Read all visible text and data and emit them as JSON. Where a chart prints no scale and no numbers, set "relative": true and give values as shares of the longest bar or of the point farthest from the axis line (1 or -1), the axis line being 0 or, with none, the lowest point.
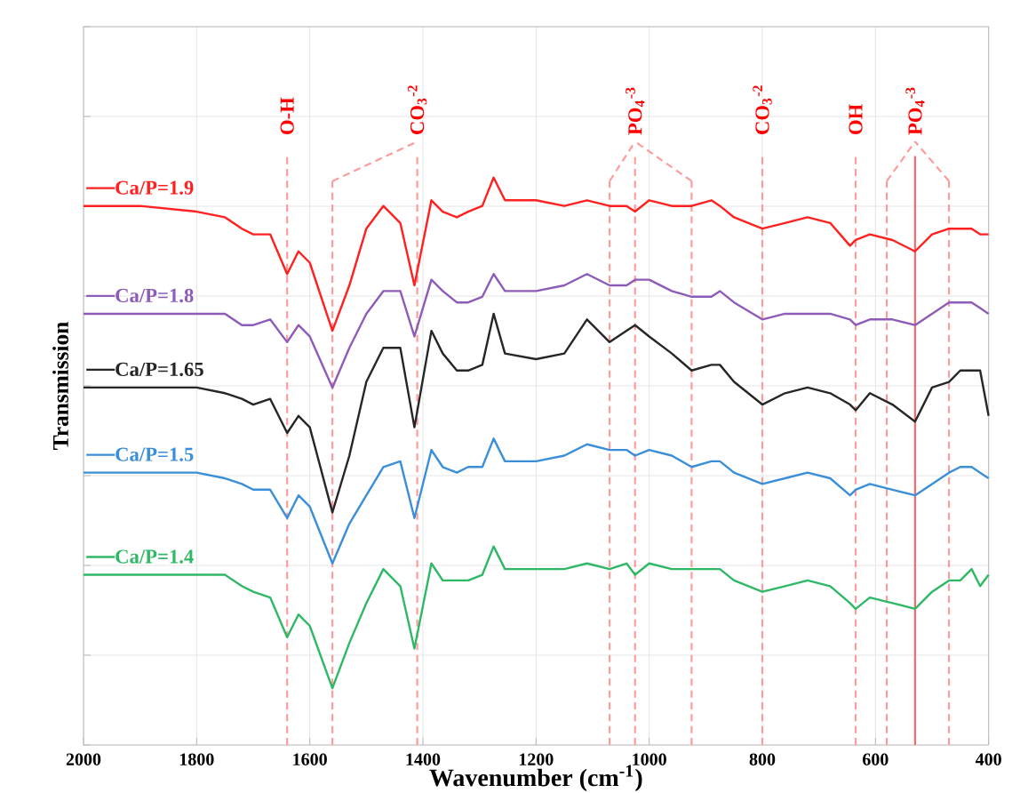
{
  "chart_data": {
    "type": "line",
    "relative": true,
    "xlabel": "Wavenumber (cm$^{-1}$)",
    "ylabel": "Transmission",
    "xlim": [
      2000,
      400
    ],
    "xticks": [
      2000,
      1800,
      1600,
      1400,
      1200,
      1000,
      800,
      600,
      400
    ],
    "grid": true,
    "tick_labels": "x",
    "legend": "left",
    "line_style": "solid",
    "x": [
      2000,
      1900,
      1800,
      1750,
      1720,
      1700,
      1670,
      1640,
      1620,
      1600,
      1560,
      1530,
      1500,
      1470,
      1440,
      1415,
      1385,
      1365,
      1340,
      1320,
      1295,
      1275,
      1255,
      1200,
      1150,
      1110,
      1070,
      1040,
      1025,
      1000,
      960,
      925,
      890,
      875,
      850,
      800,
      760,
      720,
      680,
      645,
      635,
      610,
      570,
      530,
      500,
      470,
      450,
      430,
      415,
      400
    ],
    "series": [
      {
        "name": "Ca/P=1.9",
        "color": "#ff2020",
        "values": [
          0.95,
          0.95,
          0.94,
          0.93,
          0.91,
          0.9,
          0.9,
          0.83,
          0.87,
          0.85,
          0.73,
          0.81,
          0.91,
          0.95,
          0.92,
          0.81,
          0.96,
          0.94,
          0.93,
          0.94,
          0.95,
          1.0,
          0.96,
          0.96,
          0.95,
          0.96,
          0.95,
          0.95,
          0.94,
          0.96,
          0.95,
          0.95,
          0.96,
          0.95,
          0.93,
          0.91,
          0.92,
          0.93,
          0.92,
          0.88,
          0.89,
          0.9,
          0.89,
          0.87,
          0.9,
          0.91,
          0.91,
          0.91,
          0.9,
          0.9
        ]
      },
      {
        "name": "Ca/P=1.8",
        "color": "#8e5cb8",
        "values": [
          0.76,
          0.76,
          0.76,
          0.76,
          0.74,
          0.74,
          0.75,
          0.71,
          0.74,
          0.72,
          0.63,
          0.7,
          0.76,
          0.8,
          0.8,
          0.72,
          0.82,
          0.8,
          0.78,
          0.78,
          0.79,
          0.83,
          0.8,
          0.8,
          0.81,
          0.83,
          0.81,
          0.81,
          0.82,
          0.82,
          0.8,
          0.79,
          0.79,
          0.8,
          0.78,
          0.75,
          0.76,
          0.76,
          0.76,
          0.75,
          0.74,
          0.75,
          0.75,
          0.74,
          0.76,
          0.78,
          0.78,
          0.78,
          0.77,
          0.76
        ]
      },
      {
        "name": "Ca/P=1.65",
        "color": "#262626",
        "values": [
          0.63,
          0.63,
          0.63,
          0.62,
          0.61,
          0.6,
          0.61,
          0.55,
          0.58,
          0.56,
          0.41,
          0.51,
          0.64,
          0.7,
          0.7,
          0.56,
          0.73,
          0.69,
          0.66,
          0.66,
          0.67,
          0.76,
          0.69,
          0.68,
          0.69,
          0.75,
          0.71,
          0.73,
          0.74,
          0.72,
          0.69,
          0.66,
          0.67,
          0.67,
          0.64,
          0.6,
          0.62,
          0.63,
          0.62,
          0.6,
          0.59,
          0.62,
          0.6,
          0.57,
          0.63,
          0.64,
          0.66,
          0.66,
          0.66,
          0.58
        ]
      },
      {
        "name": "Ca/P=1.5",
        "color": "#3a8fd8",
        "values": [
          0.48,
          0.48,
          0.48,
          0.47,
          0.46,
          0.45,
          0.45,
          0.4,
          0.44,
          0.42,
          0.32,
          0.39,
          0.44,
          0.49,
          0.5,
          0.4,
          0.52,
          0.49,
          0.48,
          0.49,
          0.49,
          0.54,
          0.5,
          0.5,
          0.51,
          0.53,
          0.52,
          0.52,
          0.51,
          0.52,
          0.51,
          0.49,
          0.5,
          0.5,
          0.48,
          0.46,
          0.47,
          0.48,
          0.47,
          0.44,
          0.45,
          0.46,
          0.45,
          0.44,
          0.46,
          0.48,
          0.49,
          0.49,
          0.48,
          0.47
        ]
      },
      {
        "name": "Ca/P=1.4",
        "color": "#2fb866",
        "values": [
          0.3,
          0.3,
          0.3,
          0.3,
          0.28,
          0.27,
          0.26,
          0.19,
          0.23,
          0.21,
          0.1,
          0.18,
          0.25,
          0.31,
          0.28,
          0.17,
          0.32,
          0.29,
          0.29,
          0.29,
          0.3,
          0.35,
          0.31,
          0.31,
          0.31,
          0.32,
          0.31,
          0.32,
          0.3,
          0.32,
          0.31,
          0.31,
          0.31,
          0.31,
          0.29,
          0.27,
          0.28,
          0.29,
          0.28,
          0.25,
          0.24,
          0.26,
          0.25,
          0.24,
          0.27,
          0.29,
          0.29,
          0.31,
          0.28,
          0.3
        ]
      }
    ],
    "ref_lines": [
      {
        "axis": "x",
        "value": 1640,
        "label": "O-H",
        "color": "#ff9a9a",
        "line_style": "dashed"
      },
      {
        "axis": "x",
        "value": 1410,
        "label": "CO$_{3}$$^{-2}$",
        "color": "#ff9a9a",
        "line_style": "dashed"
      },
      {
        "axis": "x",
        "value": 1560,
        "label": null,
        "color": "#ff9a9a",
        "line_style": "dashed"
      },
      {
        "axis": "x",
        "value": 1025,
        "label": "PO$_{4}$$^{-3}$",
        "color": "#ff9a9a",
        "line_style": "dashed"
      },
      {
        "axis": "x",
        "value": 1070,
        "label": null,
        "color": "#ff9a9a",
        "line_style": "dashed"
      },
      {
        "axis": "x",
        "value": 925,
        "label": null,
        "color": "#ff9a9a",
        "line_style": "dashed"
      },
      {
        "axis": "x",
        "value": 800,
        "label": "CO$_{3}$$^{-2}$",
        "color": "#ff9a9a",
        "line_style": "dashed"
      },
      {
        "axis": "x",
        "value": 635,
        "label": "OH",
        "color": "#ff9a9a",
        "line_style": "dashed"
      },
      {
        "axis": "x",
        "value": 530,
        "label": "PO$_{4}$$^{-3}$",
        "color": "#ff6666",
        "line_style": "solid"
      },
      {
        "axis": "x",
        "value": 580,
        "label": null,
        "color": "#ff9a9a",
        "line_style": "dashed"
      },
      {
        "axis": "x",
        "value": 470,
        "label": null,
        "color": "#ff9a9a",
        "line_style": "dashed"
      }
    ]
  }
}
